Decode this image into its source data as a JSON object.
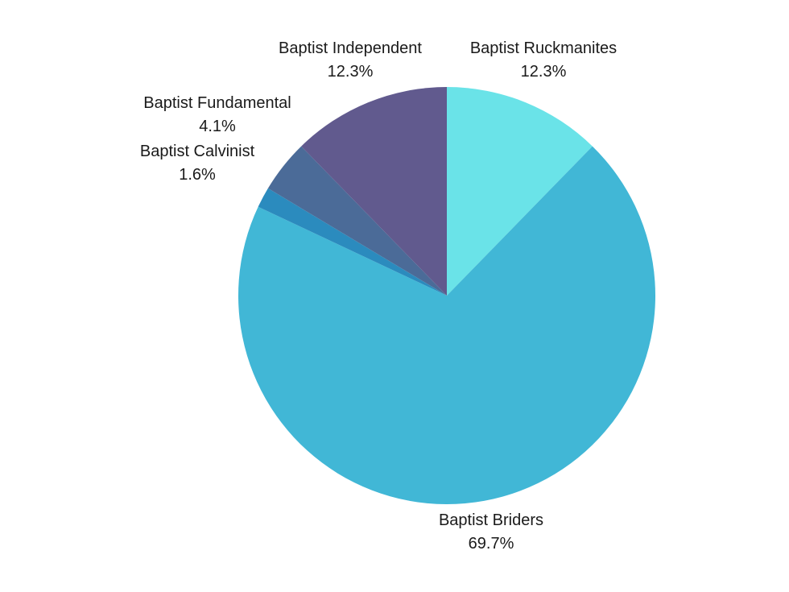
{
  "chart_data": {
    "type": "pie",
    "title": "",
    "slices": [
      {
        "label": "Baptist Ruckmanites",
        "value": 12.3,
        "display": "12.3%",
        "color": "#6ae3e8"
      },
      {
        "label": "Baptist Briders",
        "value": 69.7,
        "display": "69.7%",
        "color": "#41b7d6"
      },
      {
        "label": "Baptist Calvinist",
        "value": 1.6,
        "display": "1.6%",
        "color": "#2b8bbe"
      },
      {
        "label": "Baptist Fundamental",
        "value": 4.1,
        "display": "4.1%",
        "color": "#4b6b98"
      },
      {
        "label": "Baptist Independent",
        "value": 12.3,
        "display": "12.3%",
        "color": "#615a8e"
      }
    ],
    "start": "12 o'clock",
    "direction": "clockwise",
    "legend": "none"
  }
}
